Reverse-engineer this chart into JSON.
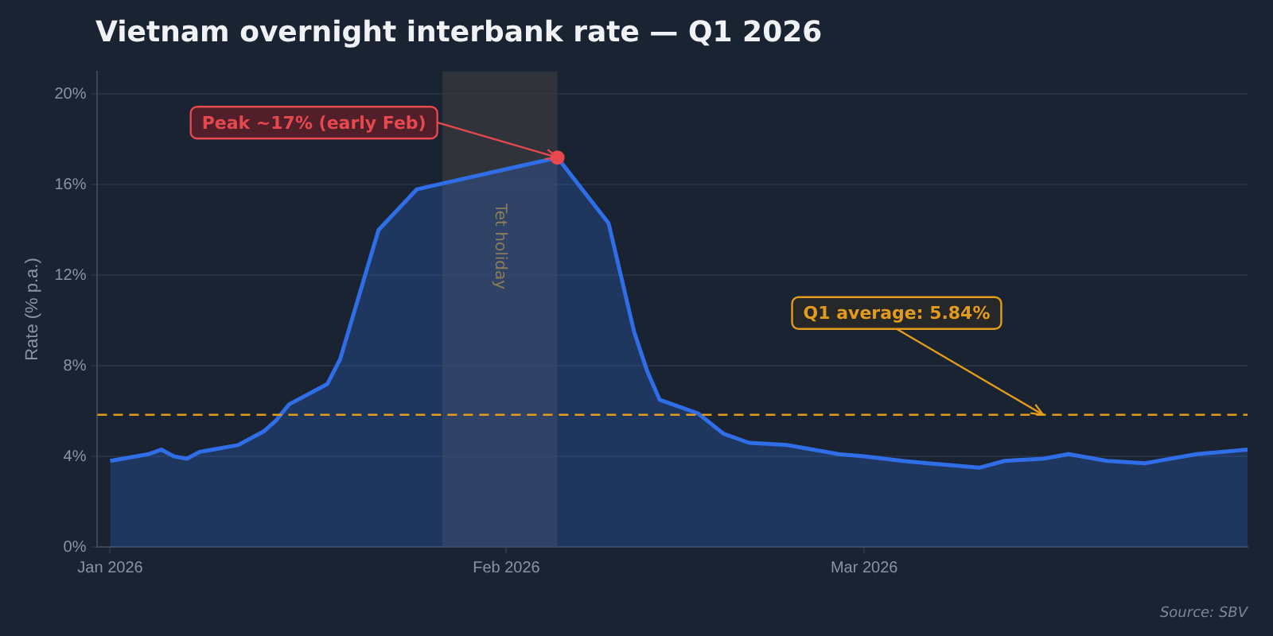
{
  "chart_data": {
    "type": "area",
    "title": "Vietnam overnight interbank rate — Q1 2026",
    "ylabel": "Rate (% p.a.)",
    "x": [
      "2026-01-01",
      "2026-01-04",
      "2026-01-05",
      "2026-01-06",
      "2026-01-07",
      "2026-01-08",
      "2026-01-11",
      "2026-01-13",
      "2026-01-14",
      "2026-01-15",
      "2026-01-18",
      "2026-01-19",
      "2026-01-22",
      "2026-01-25",
      "2026-02-05",
      "2026-02-09",
      "2026-02-11",
      "2026-02-12",
      "2026-02-13",
      "2026-02-16",
      "2026-02-18",
      "2026-02-20",
      "2026-02-23",
      "2026-02-27",
      "2026-03-01",
      "2026-03-04",
      "2026-03-06",
      "2026-03-10",
      "2026-03-12",
      "2026-03-15",
      "2026-03-17",
      "2026-03-20",
      "2026-03-23",
      "2026-03-27",
      "2026-03-31"
    ],
    "series": [
      {
        "color": "#2f6ee6",
        "values": [
          3.8,
          4.1,
          4.3,
          4.0,
          3.9,
          4.2,
          4.5,
          5.1,
          5.6,
          6.3,
          7.2,
          8.3,
          14.0,
          15.8,
          17.2,
          14.3,
          9.5,
          7.8,
          6.5,
          5.9,
          5.0,
          4.6,
          4.5,
          4.1,
          4.0,
          3.8,
          3.7,
          3.5,
          3.8,
          3.9,
          4.1,
          3.8,
          3.7,
          4.1,
          4.3
        ]
      }
    ],
    "xlim": [
      "2025-12-31",
      "2026-03-31"
    ],
    "xticks": [
      {
        "value": "2026-01-01",
        "label": "Jan 2026"
      },
      {
        "value": "2026-02-01",
        "label": "Feb 2026"
      },
      {
        "value": "2026-03-01",
        "label": "Mar 2026"
      }
    ],
    "ylim": [
      0,
      21
    ],
    "yticks": [
      {
        "value": 0,
        "label": "0%"
      },
      {
        "value": 4,
        "label": "4%"
      },
      {
        "value": 8,
        "label": "8%"
      },
      {
        "value": 12,
        "label": "12%"
      },
      {
        "value": 16,
        "label": "16%"
      },
      {
        "value": 20,
        "label": "20%"
      }
    ],
    "grid": "y",
    "legend": false,
    "bands": [
      {
        "axis": "x",
        "from": "2026-01-27",
        "to": "2026-02-05",
        "label": "Tet holiday",
        "color": "#3a3a3e"
      }
    ],
    "ref_lines": [
      {
        "axis": "y",
        "value": 5.84,
        "color": "#e39b1c",
        "line_style": "dashed"
      }
    ],
    "annotations": [
      {
        "text": "Peak ~17% (early Feb)",
        "x": "2026-02-05",
        "y": 17.2
      },
      {
        "text": "Q1 average: 5.84%",
        "x": "2026-03-15",
        "y": 5.84
      },
      "Source: SBV"
    ]
  }
}
